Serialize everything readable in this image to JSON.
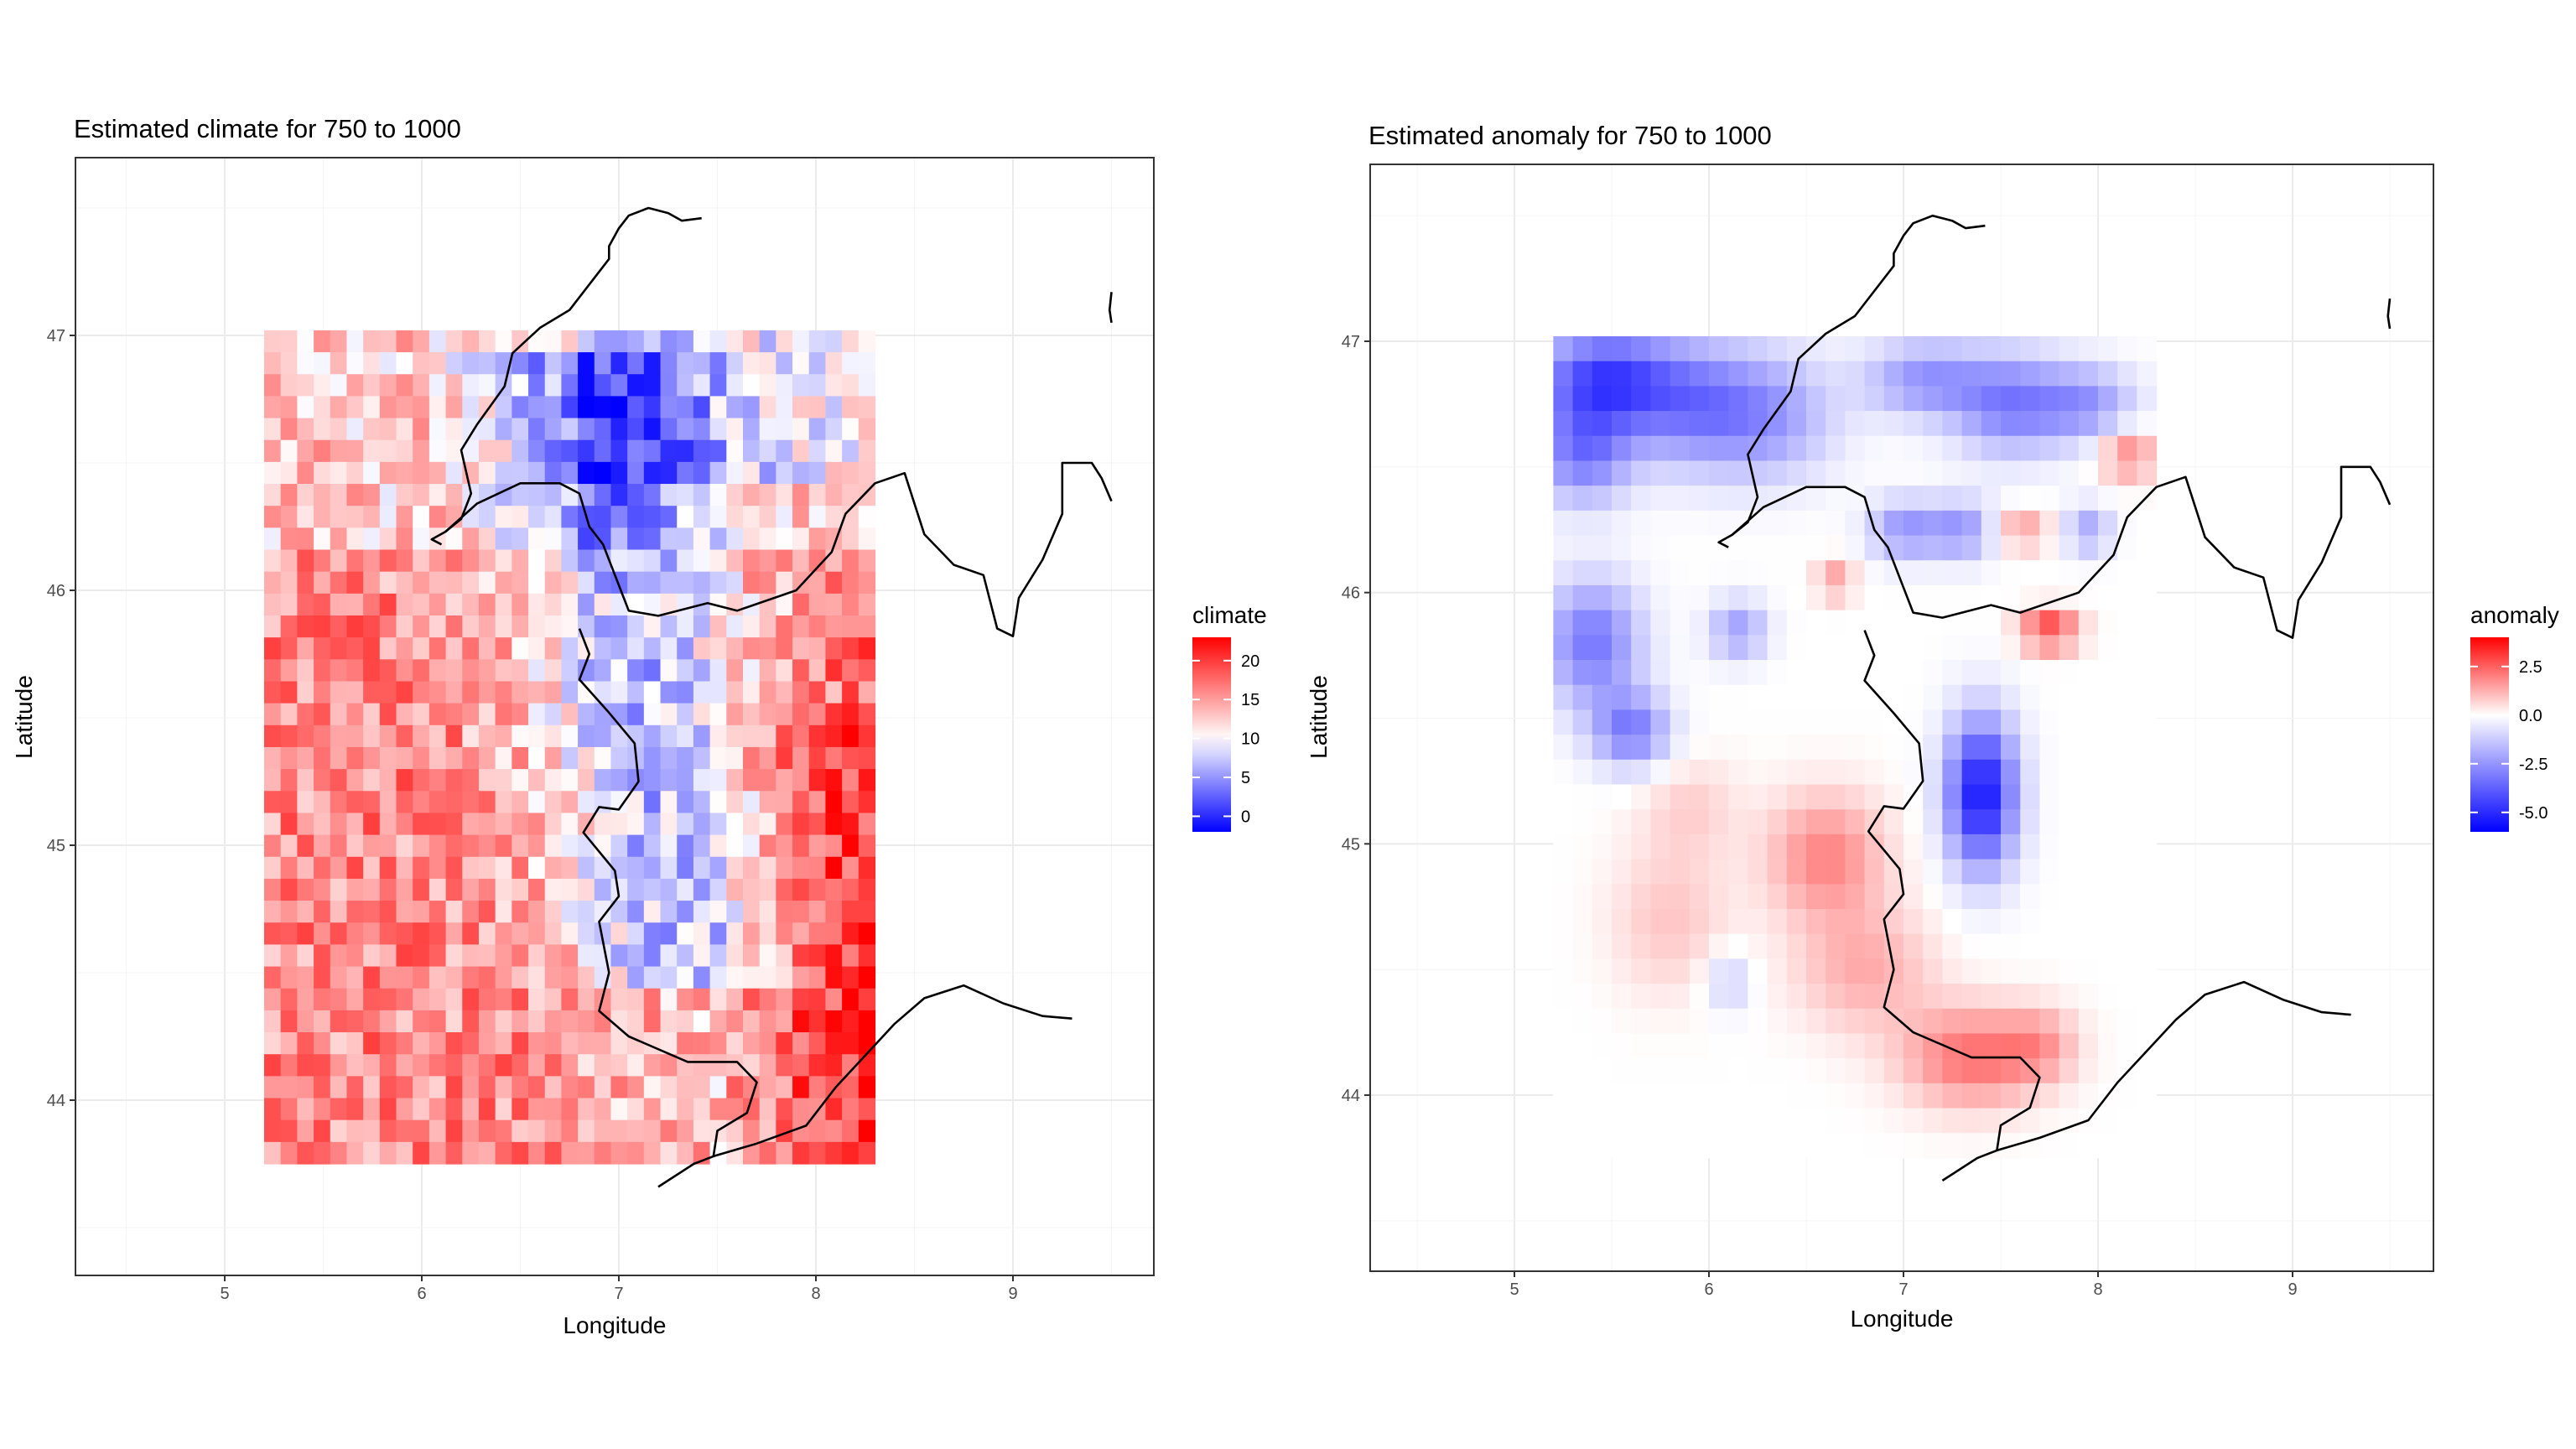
{
  "chart_data": [
    {
      "type": "heatmap",
      "title": "Estimated climate for 750 to 1000",
      "xlabel": "Longitude",
      "ylabel": "Latitude",
      "xlim": [
        4.3,
        9.8
      ],
      "ylim": [
        43.3,
        47.6
      ],
      "x_ticks": [
        "5",
        "6",
        "7",
        "8",
        "9"
      ],
      "y_ticks": [
        "44",
        "45",
        "46",
        "47"
      ],
      "grid": true,
      "legend": {
        "title": "climate",
        "ticks": [
          "20",
          "15",
          "10",
          "5",
          "0"
        ],
        "range": [
          -2,
          23
        ],
        "midpoint": 10,
        "colors": {
          "low": "#0000ff",
          "mid": "#ffffff",
          "high": "#ff0000"
        },
        "position": "right"
      },
      "grid_extent": {
        "lon": [
          5.2,
          8.3
        ],
        "lat": [
          43.75,
          47.02
        ]
      },
      "cells": {
        "cols": 37,
        "rows": 38
      },
      "pattern": "noisy mosaic: mostly warm (12-20) with a cold band (2-9) along the Alps from lat 44.5 to 46.5, lon 6.6-8.0; warmest (17-20) in the south-east corner"
    },
    {
      "type": "heatmap",
      "title": "Estimated anomaly for 750 to 1000",
      "xlabel": "Longitude",
      "ylabel": "Latitude",
      "xlim": [
        4.3,
        9.8
      ],
      "ylim": [
        43.3,
        47.6
      ],
      "x_ticks": [
        "5",
        "6",
        "7",
        "8",
        "9"
      ],
      "y_ticks": [
        "44",
        "45",
        "46",
        "47"
      ],
      "grid": true,
      "legend": {
        "title": "anomaly",
        "ticks": [
          "2.5",
          "0.0",
          "-2.5",
          "-5.0"
        ],
        "range": [
          -6,
          4
        ],
        "midpoint": 0,
        "colors": {
          "low": "#0000ff",
          "mid": "#ffffff",
          "high": "#ff0000"
        },
        "position": "right"
      },
      "grid_extent": {
        "lon": [
          5.2,
          8.3
        ],
        "lat": [
          43.75,
          47.02
        ]
      },
      "cells": {
        "cols": 31,
        "rows": 33
      },
      "pattern": "smooth field: negative anomaly (-2 to -5) across the northern band (lat 46.5-47) and west (lon 5.2-5.7, lat 45.3-46), strong minimum near (7.4, 45.2); positive anomaly (+1 to +3) in the south around (6.6, 45) and (7.3, 44.2)"
    }
  ],
  "coastline_shared": true
}
